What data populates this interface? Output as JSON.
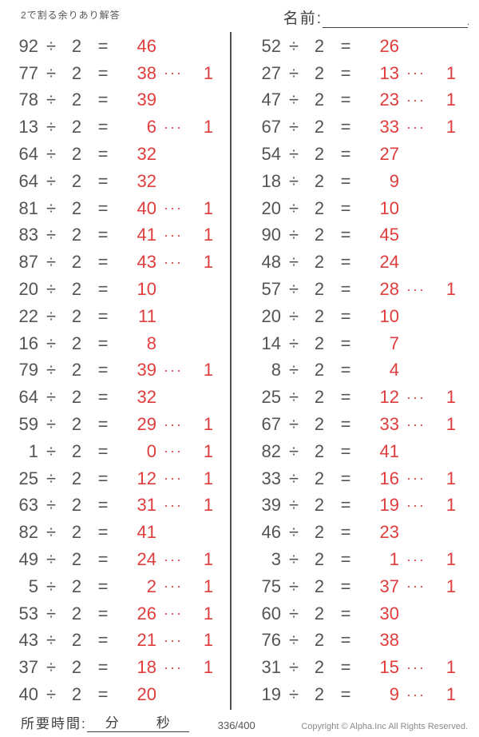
{
  "header": {
    "title": "2で割る余りあり解答",
    "name_label": "名前:",
    "name_period": "."
  },
  "problems": {
    "operator": "÷",
    "divisor": "2",
    "equals": "=",
    "dots": "···",
    "left": [
      {
        "dividend": "92",
        "quotient": "46",
        "remainder": ""
      },
      {
        "dividend": "77",
        "quotient": "38",
        "remainder": "1"
      },
      {
        "dividend": "78",
        "quotient": "39",
        "remainder": ""
      },
      {
        "dividend": "13",
        "quotient": "6",
        "remainder": "1"
      },
      {
        "dividend": "64",
        "quotient": "32",
        "remainder": ""
      },
      {
        "dividend": "64",
        "quotient": "32",
        "remainder": ""
      },
      {
        "dividend": "81",
        "quotient": "40",
        "remainder": "1"
      },
      {
        "dividend": "83",
        "quotient": "41",
        "remainder": "1"
      },
      {
        "dividend": "87",
        "quotient": "43",
        "remainder": "1"
      },
      {
        "dividend": "20",
        "quotient": "10",
        "remainder": ""
      },
      {
        "dividend": "22",
        "quotient": "11",
        "remainder": ""
      },
      {
        "dividend": "16",
        "quotient": "8",
        "remainder": ""
      },
      {
        "dividend": "79",
        "quotient": "39",
        "remainder": "1"
      },
      {
        "dividend": "64",
        "quotient": "32",
        "remainder": ""
      },
      {
        "dividend": "59",
        "quotient": "29",
        "remainder": "1"
      },
      {
        "dividend": "1",
        "quotient": "0",
        "remainder": "1"
      },
      {
        "dividend": "25",
        "quotient": "12",
        "remainder": "1"
      },
      {
        "dividend": "63",
        "quotient": "31",
        "remainder": "1"
      },
      {
        "dividend": "82",
        "quotient": "41",
        "remainder": ""
      },
      {
        "dividend": "49",
        "quotient": "24",
        "remainder": "1"
      },
      {
        "dividend": "5",
        "quotient": "2",
        "remainder": "1"
      },
      {
        "dividend": "53",
        "quotient": "26",
        "remainder": "1"
      },
      {
        "dividend": "43",
        "quotient": "21",
        "remainder": "1"
      },
      {
        "dividend": "37",
        "quotient": "18",
        "remainder": "1"
      },
      {
        "dividend": "40",
        "quotient": "20",
        "remainder": ""
      }
    ],
    "right": [
      {
        "dividend": "52",
        "quotient": "26",
        "remainder": ""
      },
      {
        "dividend": "27",
        "quotient": "13",
        "remainder": "1"
      },
      {
        "dividend": "47",
        "quotient": "23",
        "remainder": "1"
      },
      {
        "dividend": "67",
        "quotient": "33",
        "remainder": "1"
      },
      {
        "dividend": "54",
        "quotient": "27",
        "remainder": ""
      },
      {
        "dividend": "18",
        "quotient": "9",
        "remainder": ""
      },
      {
        "dividend": "20",
        "quotient": "10",
        "remainder": ""
      },
      {
        "dividend": "90",
        "quotient": "45",
        "remainder": ""
      },
      {
        "dividend": "48",
        "quotient": "24",
        "remainder": ""
      },
      {
        "dividend": "57",
        "quotient": "28",
        "remainder": "1"
      },
      {
        "dividend": "20",
        "quotient": "10",
        "remainder": ""
      },
      {
        "dividend": "14",
        "quotient": "7",
        "remainder": ""
      },
      {
        "dividend": "8",
        "quotient": "4",
        "remainder": ""
      },
      {
        "dividend": "25",
        "quotient": "12",
        "remainder": "1"
      },
      {
        "dividend": "67",
        "quotient": "33",
        "remainder": "1"
      },
      {
        "dividend": "82",
        "quotient": "41",
        "remainder": ""
      },
      {
        "dividend": "33",
        "quotient": "16",
        "remainder": "1"
      },
      {
        "dividend": "39",
        "quotient": "19",
        "remainder": "1"
      },
      {
        "dividend": "46",
        "quotient": "23",
        "remainder": ""
      },
      {
        "dividend": "3",
        "quotient": "1",
        "remainder": "1"
      },
      {
        "dividend": "75",
        "quotient": "37",
        "remainder": "1"
      },
      {
        "dividend": "60",
        "quotient": "30",
        "remainder": ""
      },
      {
        "dividend": "76",
        "quotient": "38",
        "remainder": ""
      },
      {
        "dividend": "31",
        "quotient": "15",
        "remainder": "1"
      },
      {
        "dividend": "19",
        "quotient": "9",
        "remainder": "1"
      }
    ]
  },
  "footer": {
    "time_label": "所要時間:",
    "minutes_label": "分",
    "seconds_label": "秒",
    "page_counter": "336/400",
    "copyright": "Copyright ©  Alpha.Inc All Rights Reserved."
  },
  "colors": {
    "question_text": "#545454",
    "answer_text": "#e03c3c",
    "divider": "#4f4f4f",
    "muted_text": "#8a8a8a"
  }
}
